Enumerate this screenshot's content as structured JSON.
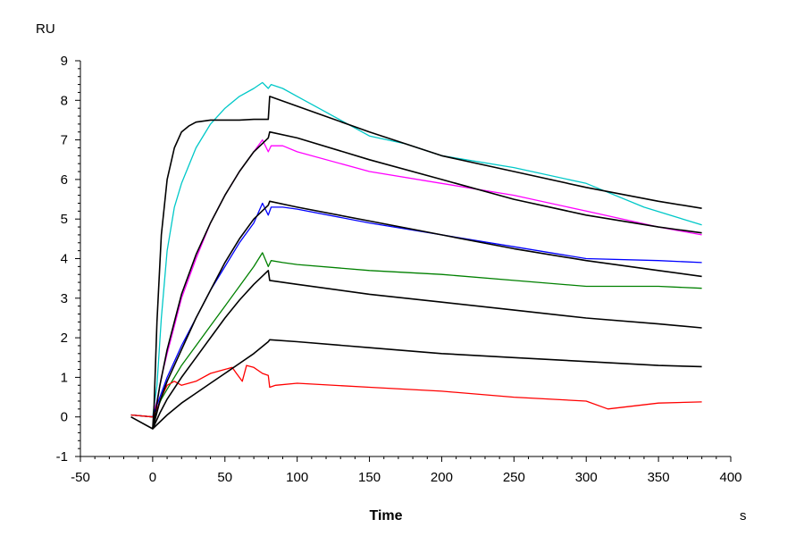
{
  "chart_data": {
    "type": "line",
    "title": "",
    "xlabel": "Time",
    "ylabel": "",
    "x_unit": "s",
    "y_unit": "RU",
    "xlim": [
      -50,
      400
    ],
    "ylim": [
      -1,
      9
    ],
    "x_ticks": [
      -50,
      0,
      50,
      100,
      150,
      200,
      250,
      300,
      350,
      400
    ],
    "y_ticks": [
      -1,
      0,
      1,
      2,
      3,
      4,
      5,
      6,
      7,
      8,
      9
    ],
    "grid": false,
    "legend": "none",
    "series": [
      {
        "kind": "measured",
        "color": "#00c8c8",
        "x": [
          -15,
          0,
          3,
          6,
          10,
          15,
          20,
          30,
          40,
          50,
          60,
          70,
          76,
          80,
          82,
          90,
          100,
          120,
          150,
          175,
          200,
          250,
          300,
          340,
          380
        ],
        "y": [
          0.05,
          0,
          0.8,
          2.5,
          4.2,
          5.3,
          5.9,
          6.8,
          7.4,
          7.8,
          8.1,
          8.3,
          8.45,
          8.3,
          8.4,
          8.3,
          8.1,
          7.7,
          7.1,
          6.9,
          6.6,
          6.3,
          5.9,
          5.3,
          4.85
        ]
      },
      {
        "kind": "measured",
        "color": "#ff00ff",
        "x": [
          -15,
          0,
          3,
          6,
          10,
          15,
          20,
          30,
          40,
          50,
          60,
          70,
          76,
          80,
          82,
          90,
          100,
          150,
          200,
          250,
          300,
          350,
          380
        ],
        "y": [
          0.05,
          0,
          0.4,
          1.0,
          1.6,
          2.3,
          3.0,
          4.0,
          4.9,
          5.6,
          6.2,
          6.7,
          7.0,
          6.7,
          6.85,
          6.85,
          6.7,
          6.2,
          5.9,
          5.6,
          5.2,
          4.8,
          4.6
        ]
      },
      {
        "kind": "measured",
        "color": "#0000ff",
        "x": [
          -15,
          0,
          3,
          6,
          10,
          15,
          20,
          30,
          40,
          50,
          60,
          70,
          76,
          80,
          82,
          90,
          100,
          150,
          200,
          250,
          300,
          350,
          380
        ],
        "y": [
          0.05,
          0,
          0.3,
          0.6,
          1.0,
          1.4,
          1.8,
          2.5,
          3.2,
          3.8,
          4.4,
          4.9,
          5.4,
          5.1,
          5.3,
          5.3,
          5.25,
          4.9,
          4.6,
          4.3,
          4.0,
          3.95,
          3.9
        ]
      },
      {
        "kind": "measured",
        "color": "#008000",
        "x": [
          -15,
          0,
          3,
          6,
          10,
          15,
          20,
          30,
          40,
          50,
          60,
          70,
          76,
          80,
          82,
          90,
          100,
          150,
          200,
          250,
          300,
          350,
          380
        ],
        "y": [
          0.05,
          0,
          0.2,
          0.45,
          0.7,
          1.0,
          1.3,
          1.8,
          2.3,
          2.8,
          3.3,
          3.8,
          4.15,
          3.8,
          3.95,
          3.9,
          3.85,
          3.7,
          3.6,
          3.45,
          3.3,
          3.3,
          3.25
        ]
      },
      {
        "kind": "measured",
        "color": "#ff0000",
        "x": [
          -15,
          0,
          3,
          6,
          10,
          15,
          20,
          30,
          40,
          50,
          55,
          58,
          62,
          65,
          70,
          76,
          80,
          81,
          85,
          100,
          150,
          200,
          250,
          300,
          315,
          350,
          380
        ],
        "y": [
          0.05,
          0,
          0.2,
          0.5,
          0.8,
          0.9,
          0.8,
          0.9,
          1.1,
          1.2,
          1.25,
          1.1,
          0.9,
          1.3,
          1.25,
          1.1,
          1.05,
          0.75,
          0.8,
          0.85,
          0.75,
          0.65,
          0.5,
          0.4,
          0.2,
          0.35,
          0.38
        ]
      },
      {
        "kind": "fit",
        "color": "#000000",
        "x": [
          -15,
          0,
          1,
          3,
          6,
          10,
          15,
          20,
          25,
          30,
          40,
          50,
          60,
          70,
          80,
          81,
          100,
          150,
          200,
          250,
          300,
          350,
          380
        ],
        "y": [
          0,
          -0.3,
          0.3,
          2.4,
          4.6,
          6.0,
          6.8,
          7.2,
          7.35,
          7.45,
          7.5,
          7.5,
          7.5,
          7.52,
          7.52,
          8.1,
          7.85,
          7.2,
          6.6,
          6.2,
          5.8,
          5.45,
          5.27
        ]
      },
      {
        "kind": "fit",
        "color": "#000000",
        "x": [
          0,
          5,
          10,
          20,
          30,
          40,
          50,
          60,
          70,
          80,
          81,
          100,
          150,
          200,
          250,
          300,
          350,
          380
        ],
        "y": [
          -0.3,
          0.8,
          1.7,
          3.1,
          4.1,
          4.9,
          5.6,
          6.2,
          6.7,
          7.05,
          7.2,
          7.05,
          6.5,
          6.0,
          5.5,
          5.1,
          4.8,
          4.65
        ]
      },
      {
        "kind": "fit",
        "color": "#000000",
        "x": [
          0,
          5,
          10,
          20,
          30,
          40,
          50,
          60,
          70,
          80,
          81,
          100,
          150,
          200,
          250,
          300,
          350,
          380
        ],
        "y": [
          -0.3,
          0.4,
          0.9,
          1.7,
          2.5,
          3.2,
          3.9,
          4.5,
          5.0,
          5.35,
          5.45,
          5.3,
          4.95,
          4.6,
          4.25,
          3.95,
          3.7,
          3.55
        ]
      },
      {
        "kind": "fit",
        "color": "#000000",
        "x": [
          0,
          5,
          10,
          20,
          30,
          40,
          50,
          60,
          70,
          80,
          81,
          100,
          150,
          200,
          250,
          300,
          350,
          380
        ],
        "y": [
          -0.3,
          0.1,
          0.45,
          1.0,
          1.5,
          2.0,
          2.5,
          2.95,
          3.35,
          3.7,
          3.45,
          3.35,
          3.1,
          2.9,
          2.7,
          2.5,
          2.35,
          2.25
        ]
      },
      {
        "kind": "fit",
        "color": "#000000",
        "x": [
          0,
          10,
          20,
          30,
          40,
          50,
          60,
          70,
          80,
          81,
          100,
          150,
          200,
          250,
          300,
          350,
          380
        ],
        "y": [
          -0.3,
          0.05,
          0.35,
          0.6,
          0.85,
          1.1,
          1.35,
          1.6,
          1.9,
          1.95,
          1.9,
          1.75,
          1.6,
          1.5,
          1.4,
          1.3,
          1.27
        ]
      }
    ]
  }
}
